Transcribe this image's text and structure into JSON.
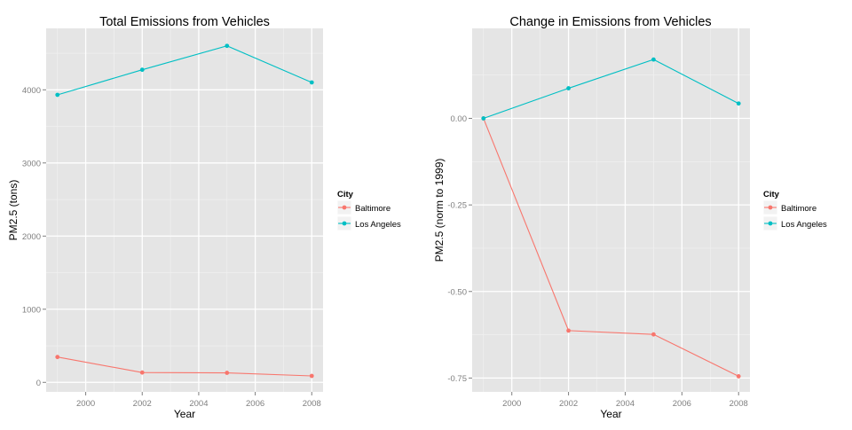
{
  "chart_data": [
    {
      "type": "line",
      "title": "Total Emissions from Vehicles",
      "xlabel": "Year",
      "ylabel": "PM2.5 (tons)",
      "xlim": [
        1998.6,
        2008.4
      ],
      "ylim": [
        -130,
        4840
      ],
      "x_ticks": [
        2000,
        2002,
        2004,
        2006,
        2008
      ],
      "y_ticks": [
        0,
        1000,
        2000,
        3000,
        4000
      ],
      "y_tick_labels": [
        "0",
        "1000",
        "2000",
        "3000",
        "4000"
      ],
      "legend": {
        "title": "City",
        "placement": "right"
      },
      "series": [
        {
          "name": "Baltimore",
          "color": "#F8766D",
          "x": [
            1999,
            2002,
            2005,
            2008
          ],
          "y": [
            346.8,
            134.3,
            130.4,
            88.3
          ]
        },
        {
          "name": "Los Angeles",
          "color": "#00BFC4",
          "x": [
            1999,
            2002,
            2005,
            2008
          ],
          "y": [
            3931,
            4274,
            4601,
            4101
          ]
        }
      ]
    },
    {
      "type": "line",
      "title": "Change in Emissions from Vehicles",
      "xlabel": "Year",
      "ylabel": "PM2.5 (norm to 1999)",
      "xlim": [
        1998.6,
        2008.4
      ],
      "ylim": [
        -0.79,
        0.26
      ],
      "x_ticks": [
        2000,
        2002,
        2004,
        2006,
        2008
      ],
      "y_ticks": [
        0,
        -0.25,
        -0.5,
        -0.75
      ],
      "y_tick_labels": [
        "0.00",
        "-0.25",
        "-0.50",
        "-0.75"
      ],
      "legend": {
        "title": "City",
        "placement": "right"
      },
      "series": [
        {
          "name": "Baltimore",
          "color": "#F8766D",
          "x": [
            1999,
            2002,
            2005,
            2008
          ],
          "y": [
            0,
            -0.613,
            -0.624,
            -0.745
          ]
        },
        {
          "name": "Los Angeles",
          "color": "#00BFC4",
          "x": [
            1999,
            2002,
            2005,
            2008
          ],
          "y": [
            0,
            0.087,
            0.17,
            0.043
          ]
        }
      ]
    }
  ]
}
